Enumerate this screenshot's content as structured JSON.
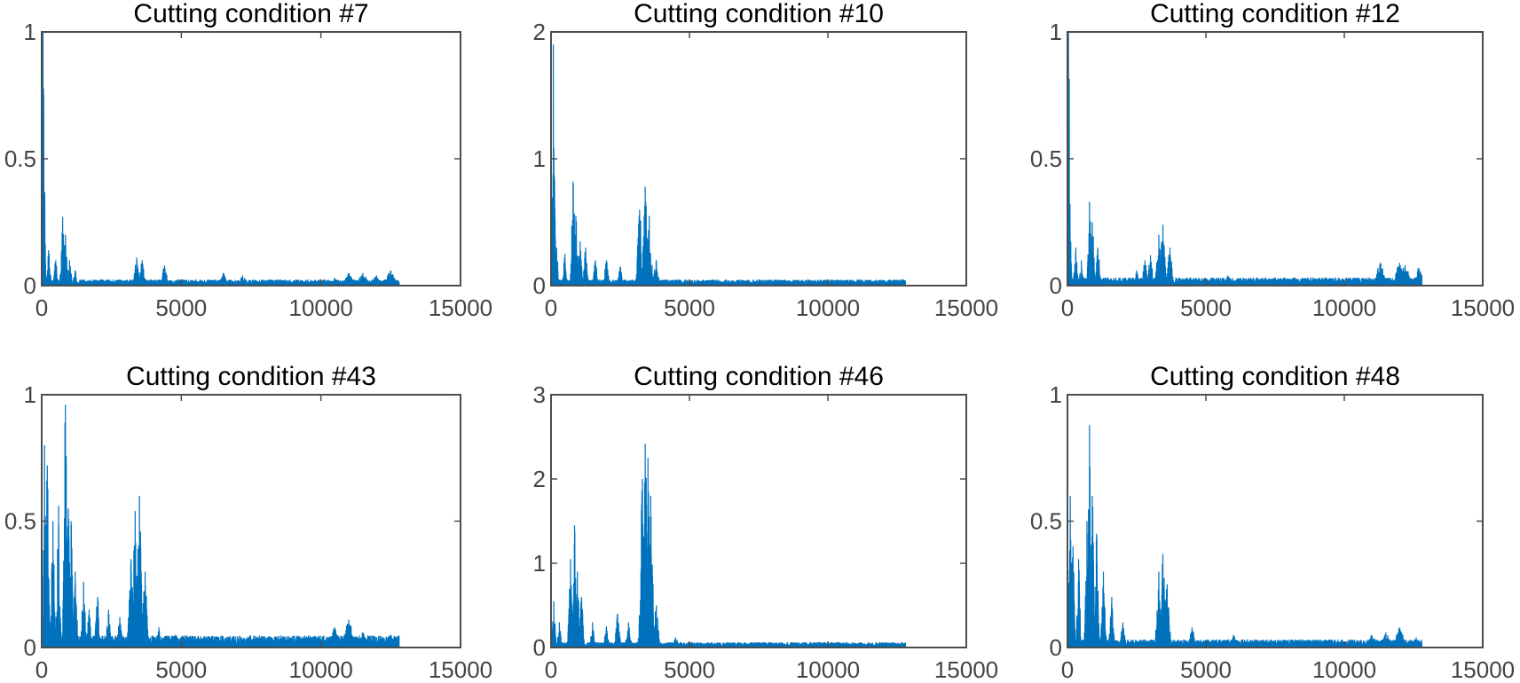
{
  "chart_data": [
    {
      "type": "line",
      "title": "Cutting condition #7",
      "xlim": [
        0,
        15000
      ],
      "ylim": [
        0,
        1
      ],
      "xticks": [
        0,
        5000,
        10000,
        15000
      ],
      "yticks": [
        0,
        0.5,
        1
      ],
      "xtick_labels": [
        "0",
        "5000",
        "10000",
        "15000"
      ],
      "ytick_labels": [
        "0",
        "0.5",
        "1"
      ],
      "color": "#0072BD",
      "x_max": 12800,
      "peaks": [
        [
          50,
          1.0
        ],
        [
          80,
          0.25
        ],
        [
          250,
          0.14
        ],
        [
          500,
          0.1
        ],
        [
          750,
          0.27
        ],
        [
          850,
          0.2
        ],
        [
          1000,
          0.1
        ],
        [
          1200,
          0.06
        ],
        [
          2200,
          0.02
        ],
        [
          3400,
          0.11
        ],
        [
          3600,
          0.1
        ],
        [
          4400,
          0.08
        ],
        [
          6500,
          0.05
        ],
        [
          7200,
          0.04
        ],
        [
          10500,
          0.03
        ],
        [
          11000,
          0.05
        ],
        [
          11500,
          0.05
        ],
        [
          12000,
          0.04
        ],
        [
          12500,
          0.06
        ]
      ],
      "noise_floor": 0.015
    },
    {
      "type": "line",
      "title": "Cutting condition #10",
      "xlim": [
        0,
        15000
      ],
      "ylim": [
        0,
        2
      ],
      "xticks": [
        0,
        5000,
        10000,
        15000
      ],
      "yticks": [
        0,
        1,
        2
      ],
      "xtick_labels": [
        "0",
        "5000",
        "10000",
        "15000"
      ],
      "ytick_labels": [
        "0",
        "1",
        "2"
      ],
      "color": "#0072BD",
      "x_max": 12800,
      "peaks": [
        [
          80,
          1.9
        ],
        [
          200,
          0.3
        ],
        [
          500,
          0.25
        ],
        [
          800,
          0.82
        ],
        [
          900,
          0.55
        ],
        [
          1050,
          0.35
        ],
        [
          1250,
          0.3
        ],
        [
          1600,
          0.2
        ],
        [
          2000,
          0.2
        ],
        [
          2500,
          0.15
        ],
        [
          3200,
          0.6
        ],
        [
          3400,
          0.78
        ],
        [
          3550,
          0.55
        ],
        [
          3800,
          0.2
        ],
        [
          6000,
          0.04
        ],
        [
          12700,
          0.05
        ]
      ],
      "noise_floor": 0.03
    },
    {
      "type": "line",
      "title": "Cutting condition #12",
      "xlim": [
        0,
        15000
      ],
      "ylim": [
        0,
        1
      ],
      "xticks": [
        0,
        5000,
        10000,
        15000
      ],
      "yticks": [
        0,
        0.5,
        1
      ],
      "xtick_labels": [
        "0",
        "5000",
        "10000",
        "15000"
      ],
      "ytick_labels": [
        "0",
        "0.5",
        "1"
      ],
      "color": "#0072BD",
      "x_max": 12800,
      "peaks": [
        [
          40,
          1.0
        ],
        [
          80,
          0.28
        ],
        [
          300,
          0.15
        ],
        [
          500,
          0.1
        ],
        [
          800,
          0.33
        ],
        [
          900,
          0.25
        ],
        [
          1100,
          0.15
        ],
        [
          2500,
          0.06
        ],
        [
          2800,
          0.1
        ],
        [
          3000,
          0.12
        ],
        [
          3300,
          0.2
        ],
        [
          3450,
          0.24
        ],
        [
          3700,
          0.15
        ],
        [
          5800,
          0.04
        ],
        [
          11300,
          0.09
        ],
        [
          12000,
          0.09
        ],
        [
          12200,
          0.08
        ],
        [
          12700,
          0.07
        ]
      ],
      "noise_floor": 0.02
    },
    {
      "type": "line",
      "title": "Cutting condition #43",
      "xlim": [
        0,
        15000
      ],
      "ylim": [
        0,
        1
      ],
      "xticks": [
        0,
        5000,
        10000,
        15000
      ],
      "yticks": [
        0,
        0.5,
        1
      ],
      "xtick_labels": [
        "0",
        "5000",
        "10000",
        "15000"
      ],
      "ytick_labels": [
        "0",
        "0.5",
        "1"
      ],
      "color": "#0072BD",
      "x_max": 12800,
      "peaks": [
        [
          100,
          0.8
        ],
        [
          200,
          0.72
        ],
        [
          400,
          0.5
        ],
        [
          600,
          0.56
        ],
        [
          850,
          0.96
        ],
        [
          950,
          0.55
        ],
        [
          1050,
          0.5
        ],
        [
          1200,
          0.3
        ],
        [
          1500,
          0.26
        ],
        [
          1700,
          0.15
        ],
        [
          2000,
          0.2
        ],
        [
          2400,
          0.15
        ],
        [
          2800,
          0.12
        ],
        [
          3200,
          0.35
        ],
        [
          3350,
          0.54
        ],
        [
          3500,
          0.6
        ],
        [
          3700,
          0.3
        ],
        [
          4200,
          0.08
        ],
        [
          4800,
          0.05
        ],
        [
          10500,
          0.08
        ],
        [
          11000,
          0.11
        ],
        [
          11500,
          0.06
        ],
        [
          12500,
          0.05
        ]
      ],
      "noise_floor": 0.03
    },
    {
      "type": "line",
      "title": "Cutting condition #46",
      "xlim": [
        0,
        15000
      ],
      "ylim": [
        0,
        3
      ],
      "xticks": [
        0,
        5000,
        10000,
        15000
      ],
      "yticks": [
        0,
        1,
        2,
        3
      ],
      "xtick_labels": [
        "0",
        "5000",
        "10000",
        "15000"
      ],
      "ytick_labels": [
        "0",
        "1",
        "2",
        "3"
      ],
      "color": "#0072BD",
      "x_max": 12800,
      "peaks": [
        [
          100,
          0.55
        ],
        [
          300,
          0.3
        ],
        [
          700,
          1.05
        ],
        [
          850,
          1.45
        ],
        [
          950,
          0.9
        ],
        [
          1100,
          0.6
        ],
        [
          1500,
          0.3
        ],
        [
          2000,
          0.25
        ],
        [
          2400,
          0.4
        ],
        [
          2800,
          0.3
        ],
        [
          3300,
          2.0
        ],
        [
          3400,
          2.42
        ],
        [
          3500,
          2.25
        ],
        [
          3600,
          1.8
        ],
        [
          3800,
          0.5
        ],
        [
          4500,
          0.12
        ],
        [
          6000,
          0.06
        ],
        [
          10500,
          0.05
        ],
        [
          12700,
          0.05
        ]
      ],
      "noise_floor": 0.04
    },
    {
      "type": "line",
      "title": "Cutting condition #48",
      "xlim": [
        0,
        15000
      ],
      "ylim": [
        0,
        1
      ],
      "xticks": [
        0,
        5000,
        10000,
        15000
      ],
      "yticks": [
        0,
        0.5,
        1
      ],
      "xtick_labels": [
        "0",
        "5000",
        "10000",
        "15000"
      ],
      "ytick_labels": [
        "0",
        "0.5",
        "1"
      ],
      "color": "#0072BD",
      "x_max": 12800,
      "peaks": [
        [
          100,
          0.6
        ],
        [
          200,
          0.4
        ],
        [
          400,
          0.35
        ],
        [
          700,
          0.5
        ],
        [
          800,
          0.88
        ],
        [
          900,
          0.6
        ],
        [
          1050,
          0.45
        ],
        [
          1300,
          0.3
        ],
        [
          1600,
          0.2
        ],
        [
          2000,
          0.1
        ],
        [
          3300,
          0.3
        ],
        [
          3450,
          0.37
        ],
        [
          3600,
          0.25
        ],
        [
          4500,
          0.08
        ],
        [
          6000,
          0.05
        ],
        [
          11000,
          0.05
        ],
        [
          11500,
          0.06
        ],
        [
          12000,
          0.08
        ],
        [
          12600,
          0.04
        ]
      ],
      "noise_floor": 0.02
    }
  ]
}
